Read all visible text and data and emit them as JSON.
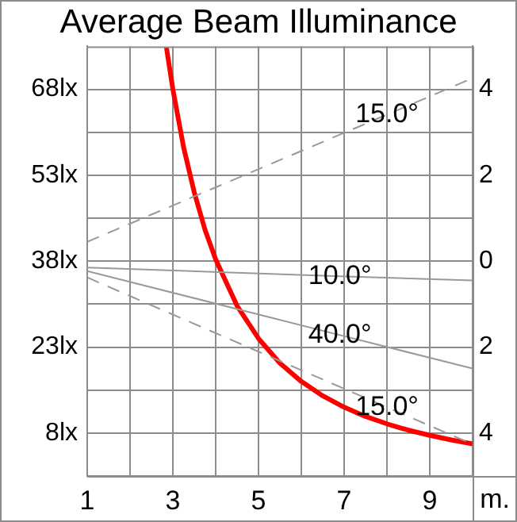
{
  "chart_data": {
    "type": "line",
    "title": "Average Beam Illuminance",
    "xlabel": "m.",
    "xlim": [
      1,
      10
    ],
    "xticks": [
      1,
      {
        "value": 2,
        "label": null
      },
      3,
      {
        "value": 4,
        "label": null
      },
      5,
      {
        "value": 6,
        "label": null
      },
      7,
      {
        "value": 8,
        "label": null
      },
      9,
      {
        "value": 10,
        "label": null
      }
    ],
    "ylim": [
      0.5,
      75.5
    ],
    "yticks": [
      {
        "value": 8,
        "label": "8lx"
      },
      {
        "value": 15.5,
        "label": null
      },
      {
        "value": 23,
        "label": "23lx"
      },
      {
        "value": 30.5,
        "label": null
      },
      {
        "value": 38,
        "label": "38lx"
      },
      {
        "value": 45.5,
        "label": null
      },
      {
        "value": 53,
        "label": "53lx"
      },
      {
        "value": 60.5,
        "label": null
      },
      {
        "value": 68,
        "label": "68lx"
      }
    ],
    "y2lim": [
      -5,
      5
    ],
    "y2ticks": [
      {
        "value": -4,
        "label": "4"
      },
      {
        "value": -2,
        "label": "2"
      },
      0,
      2,
      4
    ],
    "grid": true,
    "legend": false,
    "marker": "none",
    "series": [
      {
        "name": "15.0°",
        "color": "#999999",
        "axis": "y2",
        "line_style": "dashed",
        "x": [
          1,
          8,
          10
        ],
        "values": [
          0.45,
          3.41,
          4.26
        ]
      },
      {
        "name": "10.0°",
        "color": "#999999",
        "axis": "y2",
        "line_style": "solid",
        "x": [
          1,
          6.9,
          10
        ],
        "values": [
          -0.15,
          -0.35,
          -0.45
        ]
      },
      {
        "name": "40.0°",
        "color": "#999999",
        "axis": "y2",
        "line_style": "solid",
        "x": [
          1,
          6.9,
          10
        ],
        "values": [
          -0.23,
          -1.72,
          -2.5
        ]
      },
      {
        "name": "15.0°",
        "color": "#999999",
        "axis": "y2",
        "line_style": "dashed",
        "x": [
          1,
          8,
          10
        ],
        "values": [
          -0.38,
          -3.4,
          -4.26
        ]
      },
      {
        "color": "#ff0000",
        "line_style": "solid",
        "x": [
          2.85,
          3,
          3.25,
          3.5,
          3.75,
          4,
          4.5,
          5,
          5.5,
          6,
          6.5,
          7,
          7.5,
          8,
          8.5,
          9,
          9.5,
          10
        ],
        "values": [
          75.3,
          68.0,
          57.9,
          50.0,
          43.5,
          38.3,
          30.2,
          24.5,
          20.2,
          17.0,
          14.5,
          12.5,
          10.9,
          9.6,
          8.5,
          7.6,
          6.8,
          6.1
        ]
      }
    ]
  }
}
